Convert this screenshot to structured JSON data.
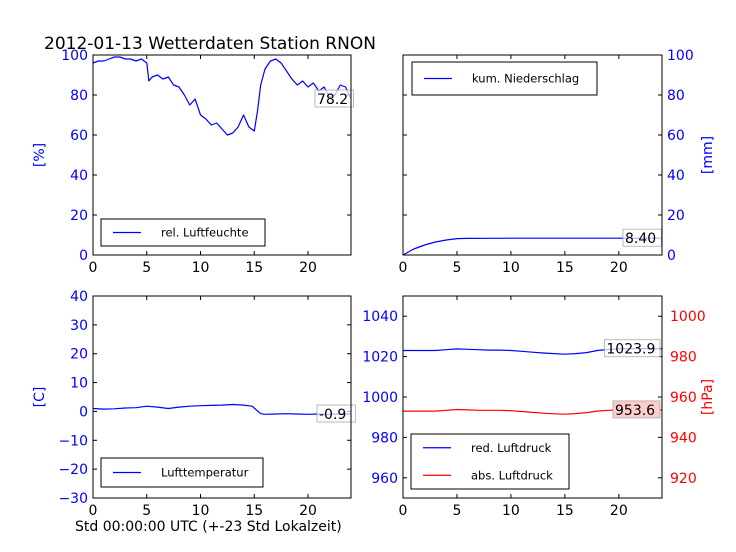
{
  "title": "2012-01-13 Wetterdaten Station RNON",
  "footer_label": "Std 00:00:00 UTC (+-23 Std Lokalzeit)",
  "colors": {
    "blue": "#0000ff",
    "red": "#ff0000",
    "last_box_fill": "#ffcccc"
  },
  "x_ticks": [
    "0",
    "5",
    "10",
    "15",
    "20"
  ],
  "chart_data": [
    {
      "id": "humidity",
      "type": "line",
      "ylabel": "[%]",
      "xlim": [
        0,
        24
      ],
      "ylim": [
        0,
        100
      ],
      "y_ticks": [
        "0",
        "20",
        "40",
        "60",
        "80",
        "100"
      ],
      "series": [
        {
          "name": "rel. Luftfeuchte",
          "color": "#0000ff",
          "last_value": "78.2",
          "x": [
            0,
            0.5,
            1,
            1.5,
            2,
            2.5,
            3,
            3.5,
            4,
            4.5,
            5,
            5.2,
            5.5,
            6,
            6.5,
            7,
            7.5,
            8,
            8.5,
            9,
            9.5,
            10,
            10.5,
            11,
            11.5,
            12,
            12.5,
            13,
            13.5,
            14,
            14.5,
            15,
            15.3,
            15.6,
            16,
            16.5,
            17,
            17.5,
            18,
            18.5,
            19,
            19.5,
            20,
            20.5,
            21,
            21.5,
            22,
            22.5,
            23,
            23.5,
            24
          ],
          "y": [
            96,
            97,
            97,
            98,
            99,
            99,
            98,
            98,
            97,
            98,
            96,
            87,
            89,
            90,
            88,
            89,
            85,
            84,
            80,
            75,
            78,
            70,
            68,
            65,
            66,
            63,
            60,
            61,
            64,
            70,
            64,
            62,
            72,
            85,
            93,
            97,
            98,
            96,
            92,
            88,
            85,
            87,
            84,
            86,
            82,
            84,
            79,
            80,
            85,
            84,
            78
          ]
        }
      ],
      "legend": "lower-left"
    },
    {
      "id": "precip",
      "type": "line",
      "ylabel": "[mm]",
      "xlim": [
        0,
        24
      ],
      "ylim": [
        0,
        100
      ],
      "y_ticks": [
        "0",
        "20",
        "40",
        "60",
        "80",
        "100"
      ],
      "series": [
        {
          "name": "kum. Niederschlag",
          "color": "#0000ff",
          "last_value": "8.40",
          "x": [
            0,
            0.5,
            1,
            2,
            3,
            4,
            5,
            6,
            8,
            10,
            15,
            20,
            24
          ],
          "y": [
            0,
            1.5,
            3,
            5,
            6.5,
            7.5,
            8.2,
            8.3,
            8.35,
            8.4,
            8.4,
            8.4,
            8.4
          ]
        }
      ],
      "legend": "upper-left"
    },
    {
      "id": "temperature",
      "type": "line",
      "ylabel": "[C]",
      "xlim": [
        0,
        24
      ],
      "ylim": [
        -30,
        40
      ],
      "y_ticks": [
        "−30",
        "−20",
        "−10",
        "0",
        "10",
        "20",
        "30",
        "40"
      ],
      "series": [
        {
          "name": "Lufttemperatur",
          "color": "#0000ff",
          "last_value": "-0.9",
          "x": [
            0,
            1,
            2,
            3,
            4,
            5,
            6,
            7,
            8,
            9,
            10,
            11,
            12,
            13,
            14,
            14.8,
            15.2,
            15.6,
            16,
            17,
            18,
            19,
            20,
            21,
            22,
            23,
            24
          ],
          "y": [
            1,
            0.8,
            0.9,
            1.2,
            1.3,
            1.8,
            1.5,
            1,
            1.5,
            1.8,
            2,
            2.1,
            2.2,
            2.4,
            2.2,
            1.8,
            0.5,
            -0.8,
            -1,
            -0.9,
            -0.8,
            -0.9,
            -1,
            -0.9,
            -1,
            -0.9,
            -0.9
          ]
        }
      ],
      "legend": "lower-left"
    },
    {
      "id": "pressure",
      "type": "line",
      "ylabel": "[hPa]",
      "xlim": [
        0,
        24
      ],
      "ylim": [
        950,
        1050
      ],
      "y_ticks": [
        "960",
        "980",
        "1000",
        "1020",
        "1040"
      ],
      "ylim_right": [
        910,
        1010
      ],
      "y_ticks_right": [
        "920",
        "940",
        "960",
        "980",
        "1000"
      ],
      "series": [
        {
          "name": "red. Luftdruck",
          "color": "#0000ff",
          "axis": "left",
          "last_value": "1023.9",
          "x": [
            0,
            1,
            2,
            3,
            4,
            5,
            6,
            7,
            8,
            9,
            10,
            11,
            12,
            13,
            14,
            15,
            16,
            17,
            18,
            19,
            20,
            21,
            22,
            23,
            24
          ],
          "y": [
            1023,
            1023,
            1023,
            1023,
            1023.4,
            1023.8,
            1023.6,
            1023.4,
            1023.2,
            1023.2,
            1023,
            1022.6,
            1022.2,
            1021.8,
            1021.5,
            1021.2,
            1021.5,
            1022,
            1023,
            1023.5,
            1023.8,
            1023.9,
            1024,
            1023.9,
            1023.9
          ]
        },
        {
          "name": "abs. Luftdruck",
          "color": "#ff0000",
          "axis": "right",
          "last_value": "953.6",
          "x": [
            0,
            1,
            2,
            3,
            4,
            5,
            6,
            7,
            8,
            9,
            10,
            11,
            12,
            13,
            14,
            15,
            16,
            17,
            18,
            19,
            20,
            21,
            22,
            23,
            24
          ],
          "y": [
            953,
            953,
            953,
            953,
            953.4,
            953.8,
            953.6,
            953.4,
            953.4,
            953.4,
            953.2,
            952.8,
            952.4,
            952,
            951.7,
            951.5,
            951.8,
            952.3,
            953,
            953.4,
            953.6,
            953.6,
            953.7,
            953.6,
            953.6
          ]
        }
      ],
      "legend": "lower-left"
    }
  ]
}
